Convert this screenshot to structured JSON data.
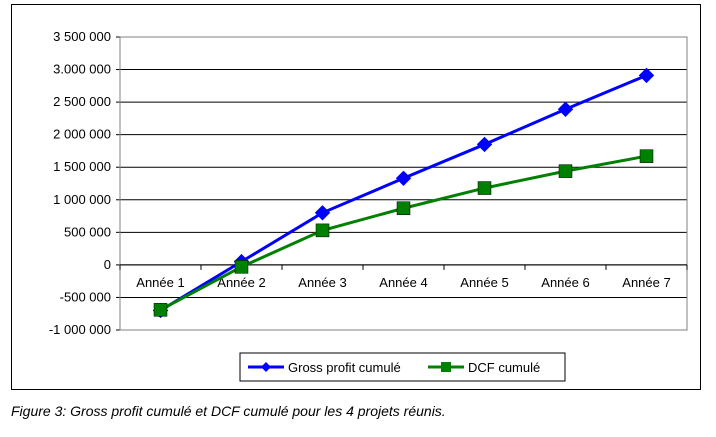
{
  "caption": "Figure 3: Gross profit cumulé et DCF cumulé pour les 4 projets réunis.",
  "chart_data": {
    "type": "line",
    "title": "",
    "xlabel": "",
    "ylabel": "",
    "categories": [
      "Année 1",
      "Année 2",
      "Année 3",
      "Année 4",
      "Année 5",
      "Année 6",
      "Année 7"
    ],
    "ylim": [
      -1000000,
      3500000
    ],
    "ytick_values": [
      -1000000,
      -500000,
      0,
      500000,
      1000000,
      1500000,
      2000000,
      2500000,
      3000000,
      3500000
    ],
    "ytick_labels": [
      "-1 000 000",
      "-500 000",
      "0",
      "500 000",
      "1 000 000",
      "1 500 000",
      "2 000 000",
      "2 500 000",
      "3.000 000",
      "3 500 000"
    ],
    "grid": true,
    "legend_position": "bottom",
    "series": [
      {
        "name": "Gross profit cumulé",
        "color": "#0000ff",
        "marker": "diamond",
        "values": [
          -700000,
          50000,
          800000,
          1330000,
          1850000,
          2390000,
          2910000
        ]
      },
      {
        "name": "DCF cumulé",
        "color": "#008000",
        "marker": "square",
        "values": [
          -690000,
          -30000,
          530000,
          870000,
          1180000,
          1440000,
          1670000
        ]
      }
    ]
  }
}
